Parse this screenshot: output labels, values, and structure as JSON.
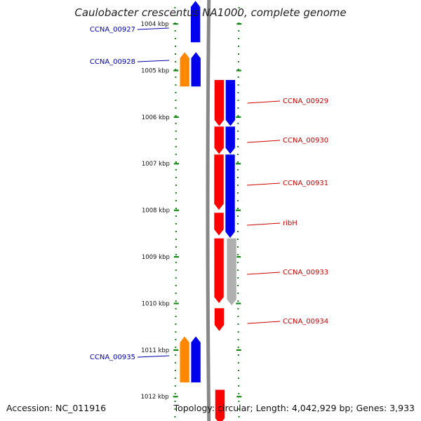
{
  "title": "Caulobacter crescentus NA1000, complete genome",
  "footer": {
    "accession": "Accession: NC_011916",
    "stats": "Topology: circular; Length: 4,042,929 bp; Genes: 3,933"
  },
  "axis": {
    "unit": "kbp",
    "ticks": [
      {
        "value": 1004,
        "label": "1004 kbp"
      },
      {
        "value": 1005,
        "label": "1005 kbp"
      },
      {
        "value": 1006,
        "label": "1006 kbp"
      },
      {
        "value": 1007,
        "label": "1007 kbp"
      },
      {
        "value": 1008,
        "label": "1008 kbp"
      },
      {
        "value": 1009,
        "label": "1009 kbp"
      },
      {
        "value": 1010,
        "label": "1010 kbp"
      },
      {
        "value": 1011,
        "label": "1011 kbp"
      },
      {
        "value": 1012,
        "label": "1012 kbp"
      }
    ]
  },
  "colors": {
    "forward_cds": "#ff0000",
    "forward_gene": "#0000ee",
    "reverse_cds": "#ff8800",
    "reverse_gene": "#0000ee",
    "pseudo_gene": "#b0b0b0",
    "backbone": "#888888",
    "tick_dots": "#118811",
    "label_forward": "#cc0000",
    "label_reverse": "#0000aa"
  },
  "features": [
    {
      "id": "f0",
      "strand": "reverse",
      "kind": "gene",
      "start": 1003.5,
      "end": 1004.4,
      "label": "CCNA_00927"
    },
    {
      "id": "f1",
      "strand": "reverse",
      "kind": "cds",
      "start": 1004.6,
      "end": 1005.35,
      "label": "CCNA_00928"
    },
    {
      "id": "f2",
      "strand": "reverse",
      "kind": "gene",
      "start": 1004.6,
      "end": 1005.35,
      "label": ""
    },
    {
      "id": "f3",
      "strand": "forward",
      "kind": "cds",
      "start": 1005.2,
      "end": 1006.2,
      "label": "CCNA_00929"
    },
    {
      "id": "f4",
      "strand": "forward",
      "kind": "gene",
      "start": 1005.2,
      "end": 1006.2,
      "label": ""
    },
    {
      "id": "f5",
      "strand": "forward",
      "kind": "cds",
      "start": 1006.2,
      "end": 1006.8,
      "label": "CCNA_00930"
    },
    {
      "id": "f6",
      "strand": "forward",
      "kind": "gene",
      "start": 1006.2,
      "end": 1006.8,
      "label": ""
    },
    {
      "id": "f7",
      "strand": "forward",
      "kind": "cds",
      "start": 1006.8,
      "end": 1008.0,
      "label": "CCNA_00931"
    },
    {
      "id": "f8",
      "strand": "forward",
      "kind": "gene",
      "start": 1006.8,
      "end": 1008.6,
      "label": ""
    },
    {
      "id": "f9",
      "strand": "forward",
      "kind": "cds",
      "start": 1008.05,
      "end": 1008.55,
      "label": "ribH"
    },
    {
      "id": "f10",
      "strand": "forward",
      "kind": "cds",
      "start": 1008.6,
      "end": 1010.0,
      "label": "CCNA_00933"
    },
    {
      "id": "f11",
      "strand": "forward",
      "kind": "pseudo",
      "start": 1008.6,
      "end": 1010.05,
      "label": ""
    },
    {
      "id": "f12",
      "strand": "forward",
      "kind": "cds",
      "start": 1010.1,
      "end": 1010.6,
      "label": "CCNA_00934"
    },
    {
      "id": "f13",
      "strand": "reverse",
      "kind": "cds",
      "start": 1010.7,
      "end": 1011.7,
      "label": "CCNA_00935"
    },
    {
      "id": "f14",
      "strand": "reverse",
      "kind": "gene",
      "start": 1010.7,
      "end": 1011.7,
      "label": ""
    },
    {
      "id": "f15",
      "strand": "forward",
      "kind": "cds",
      "start": 1011.85,
      "end": 1012.6,
      "label": ""
    }
  ]
}
